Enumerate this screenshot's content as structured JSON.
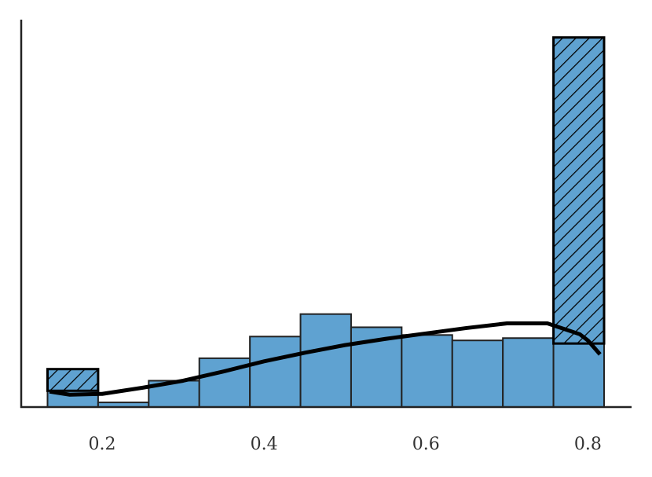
{
  "chart_data": {
    "type": "histogram",
    "bins": [
      0.1325,
      0.195,
      0.2575,
      0.32,
      0.3825,
      0.445,
      0.5075,
      0.57,
      0.6325,
      0.695,
      0.7575,
      0.82
    ],
    "values": [
      2.1,
      0.6,
      3.4,
      6.3,
      9.1,
      12.0,
      10.3,
      9.3,
      8.6,
      8.9,
      8.2
    ],
    "overflow": [
      2.8,
      null,
      null,
      null,
      null,
      null,
      null,
      null,
      null,
      null,
      39.5
    ],
    "color": "#5fa2d1",
    "edge_color": "#222222",
    "hatch_color": "#000000",
    "kde": {
      "color": "#000000",
      "x": [
        0.135,
        0.16,
        0.2,
        0.25,
        0.3,
        0.35,
        0.4,
        0.45,
        0.5,
        0.55,
        0.6,
        0.65,
        0.7,
        0.75,
        0.79,
        0.8,
        0.815
      ],
      "values": [
        2.0,
        1.6,
        1.7,
        2.5,
        3.4,
        4.6,
        5.9,
        7.0,
        8.0,
        8.8,
        9.5,
        10.2,
        10.8,
        10.8,
        9.4,
        8.6,
        6.8
      ]
    },
    "xlim": [
      0.1,
      0.853
    ],
    "xticks": [
      0.2,
      0.4,
      0.6,
      0.8
    ],
    "ylim": [
      0,
      50
    ]
  }
}
